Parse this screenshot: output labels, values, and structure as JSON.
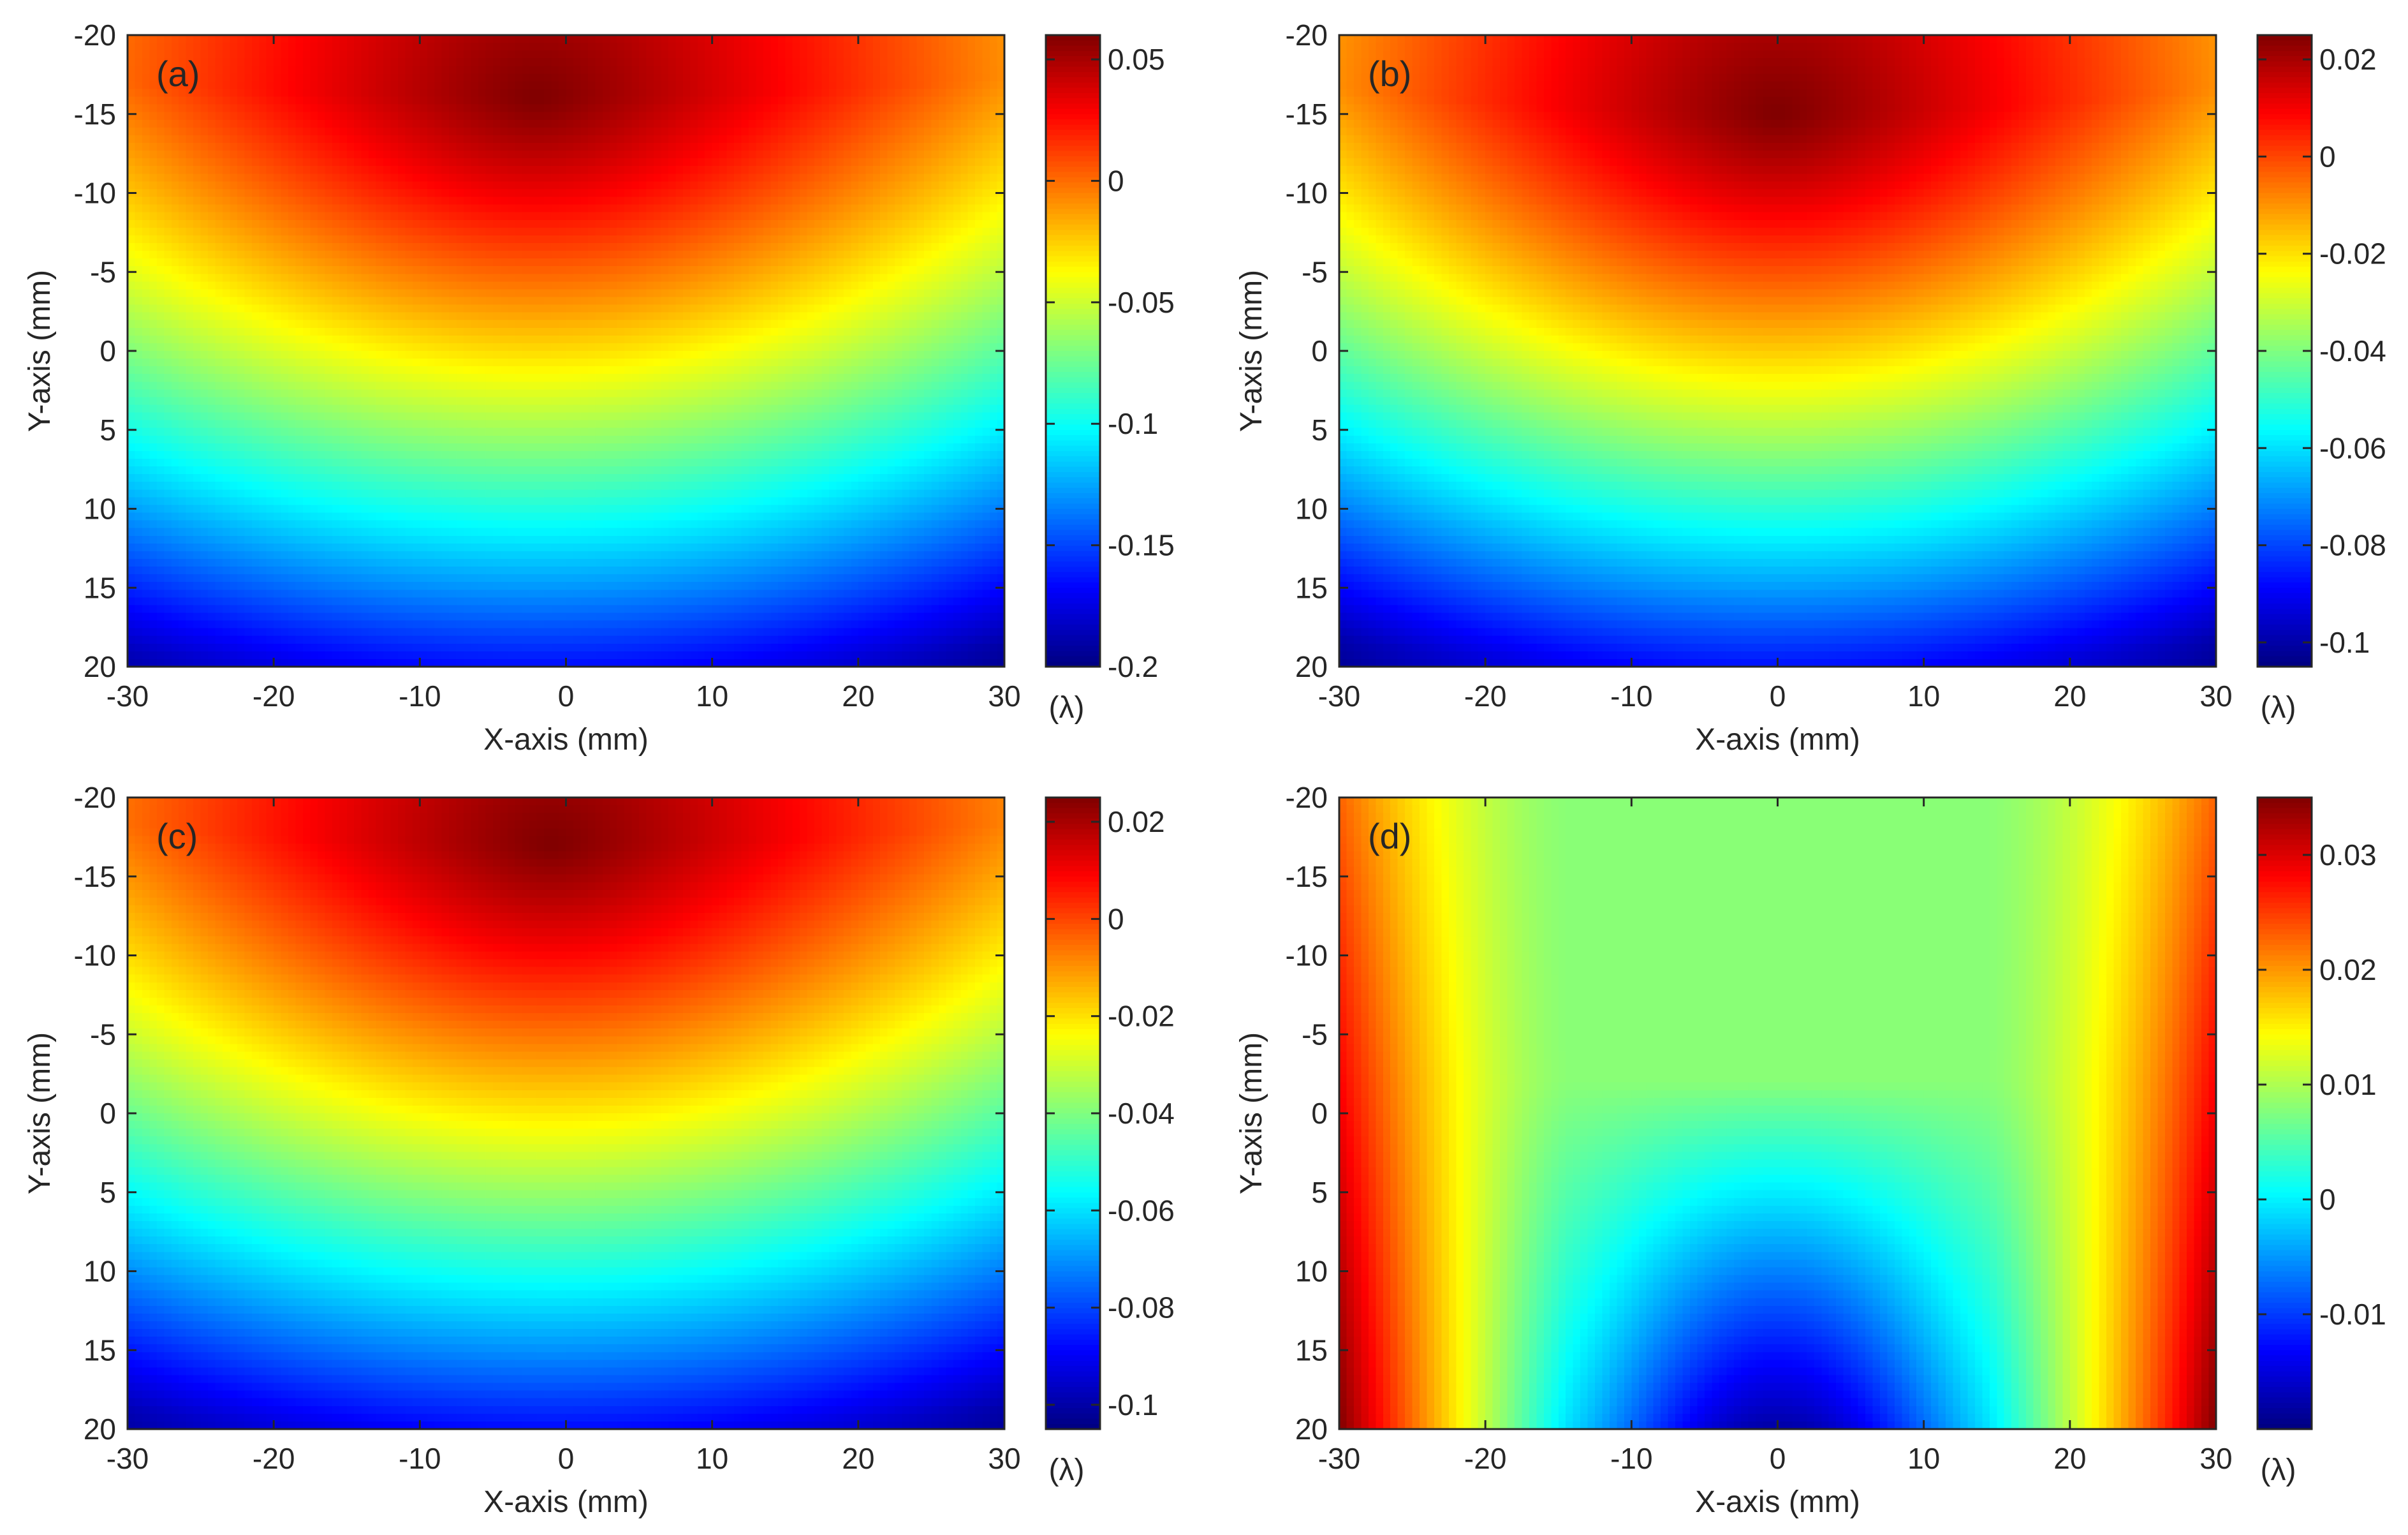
{
  "chart_data": [
    {
      "type": "heatmap",
      "panel_label": "(a)",
      "title": "",
      "xlabel": "X-axis (mm)",
      "ylabel": "Y-axis (mm)",
      "xlim": [
        -30,
        30
      ],
      "ylim": [
        -20,
        20
      ],
      "y_direction": "reversed",
      "xticks": [
        -30,
        -20,
        -10,
        0,
        10,
        20,
        30
      ],
      "yticks": [
        -20,
        -15,
        -10,
        -5,
        0,
        5,
        10,
        15,
        20
      ],
      "colorbar": {
        "min": -0.2,
        "max": 0.06,
        "ticks": [
          0.05,
          0,
          -0.05,
          -0.1,
          -0.15,
          -0.2
        ],
        "unit": "(λ)"
      },
      "pattern": "bowl",
      "field": {
        "max_value": 0.06,
        "max_at": [
          -2,
          -16
        ],
        "min_value": -0.2,
        "x_curvature": 0.12,
        "grid": [
          120,
          82
        ]
      }
    },
    {
      "type": "heatmap",
      "panel_label": "(b)",
      "title": "",
      "xlabel": "X-axis (mm)",
      "ylabel": "Y-axis (mm)",
      "xlim": [
        -30,
        30
      ],
      "ylim": [
        -20,
        20
      ],
      "y_direction": "reversed",
      "xticks": [
        -30,
        -20,
        -10,
        0,
        10,
        20,
        30
      ],
      "yticks": [
        -20,
        -15,
        -10,
        -5,
        0,
        5,
        10,
        15,
        20
      ],
      "colorbar": {
        "min": -0.105,
        "max": 0.025,
        "ticks": [
          0.02,
          0,
          -0.02,
          -0.04,
          -0.06,
          -0.08,
          -0.1
        ],
        "unit": "(λ)"
      },
      "pattern": "bowl",
      "field": {
        "max_value": 0.025,
        "max_at": [
          0,
          -15
        ],
        "min_value": -0.105,
        "x_curvature": 0.18,
        "grid": [
          120,
          82
        ]
      }
    },
    {
      "type": "heatmap",
      "panel_label": "(c)",
      "title": "",
      "xlabel": "X-axis (mm)",
      "ylabel": "Y-axis (mm)",
      "xlim": [
        -30,
        30
      ],
      "ylim": [
        -20,
        20
      ],
      "y_direction": "reversed",
      "xticks": [
        -30,
        -20,
        -10,
        0,
        10,
        20,
        30
      ],
      "yticks": [
        -20,
        -15,
        -10,
        -5,
        0,
        5,
        10,
        15,
        20
      ],
      "colorbar": {
        "min": -0.105,
        "max": 0.025,
        "ticks": [
          0.02,
          0,
          -0.02,
          -0.04,
          -0.06,
          -0.08,
          -0.1
        ],
        "unit": "(λ)"
      },
      "pattern": "bowl",
      "field": {
        "max_value": 0.025,
        "max_at": [
          -1,
          -17
        ],
        "min_value": -0.105,
        "x_curvature": 0.14,
        "grid": [
          120,
          82
        ]
      }
    },
    {
      "type": "heatmap",
      "panel_label": "(d)",
      "title": "",
      "xlabel": "X-axis (mm)",
      "ylabel": "Y-axis (mm)",
      "xlim": [
        -30,
        30
      ],
      "ylim": [
        -20,
        20
      ],
      "y_direction": "reversed",
      "xticks": [
        -30,
        -20,
        -10,
        0,
        10,
        20,
        30
      ],
      "yticks": [
        -20,
        -15,
        -10,
        -5,
        0,
        5,
        10,
        15,
        20
      ],
      "colorbar": {
        "min": -0.02,
        "max": 0.035,
        "ticks": [
          0.03,
          0.02,
          0.01,
          0,
          -0.01
        ],
        "unit": "(λ)"
      },
      "pattern": "edges",
      "field": {
        "max_value": 0.035,
        "max_at": [
          29,
          19
        ],
        "min_value": -0.018,
        "min_at": [
          0,
          19
        ],
        "grid": [
          120,
          82
        ]
      }
    }
  ]
}
